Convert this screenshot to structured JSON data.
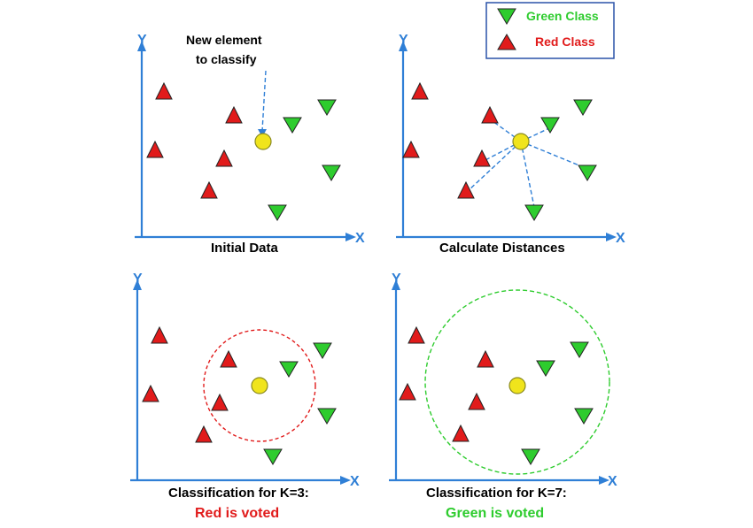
{
  "legend": {
    "green_label": "Green Class",
    "red_label": "Red Class",
    "green_color": "#2ecc2e",
    "red_color": "#e11b1b"
  },
  "annotation": {
    "line1": "New element",
    "line2": "to classify"
  },
  "axes": {
    "x_letter": "X",
    "y_letter": "Y"
  },
  "panels": [
    {
      "id": "initial",
      "caption": "Initial Data",
      "result": ""
    },
    {
      "id": "distances",
      "caption": "Calculate Distances",
      "result": ""
    },
    {
      "id": "k3",
      "caption": "Classification for K=3:",
      "result": "Red is voted",
      "result_color": "#e11b1b",
      "k": 3,
      "circle_color": "#e11b1b"
    },
    {
      "id": "k7",
      "caption": "Classification for K=7:",
      "result": "Green is voted",
      "result_color": "#2ecc2e",
      "k": 7,
      "circle_color": "#2ecc2e"
    }
  ],
  "point_color_new": "#f0e41c"
}
